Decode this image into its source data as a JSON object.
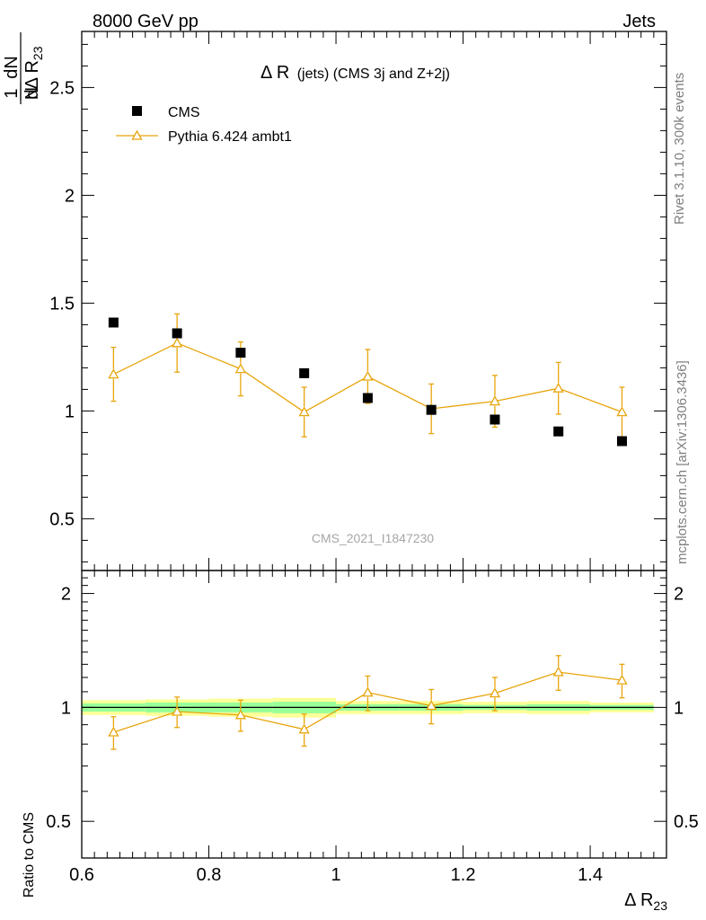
{
  "header": {
    "left": "8000 GeV pp",
    "right": "Jets"
  },
  "side_labels": {
    "rivet": "Rivet 3.1.10,  300k events",
    "mcplots": "mcplots.cern.ch [arXiv:1306.3436]"
  },
  "watermark": "CMS_2021_I1847230",
  "chart_data": [
    {
      "type": "scatter",
      "panel": "main",
      "title": "Δ R (jets) (CMS 3j and Z+2j)",
      "title_main": "Δ R",
      "title_sub": "(jets) (CMS 3j and Z+2j)",
      "ylabel": "1/N dN/dΔ R23",
      "ylabel_num": "1",
      "ylabel_den": "N",
      "ylabel_dnum": "dN",
      "ylabel_dden": "dΔ R",
      "ylabel_sub": "23",
      "xlim": [
        0.6,
        1.52
      ],
      "ylim": [
        0.26,
        2.76
      ],
      "yticks": [
        0.5,
        1,
        1.5,
        2,
        2.5
      ],
      "ytick_labels": [
        "0.5",
        "1",
        "1.5",
        "2",
        "2.5"
      ],
      "legend_position": "top-left",
      "series": [
        {
          "name": "CMS",
          "color": "#000000",
          "marker": "square",
          "x": [
            0.65,
            0.75,
            0.85,
            0.95,
            1.05,
            1.15,
            1.25,
            1.35,
            1.45
          ],
          "y": [
            1.41,
            1.36,
            1.27,
            1.175,
            1.06,
            1.005,
            0.96,
            0.905,
            0.86
          ]
        },
        {
          "name": "Pythia 6.424 ambt1",
          "color": "#e8a50c",
          "marker": "open-triangle",
          "x": [
            0.65,
            0.75,
            0.85,
            0.95,
            1.05,
            1.15,
            1.25,
            1.35,
            1.45
          ],
          "y": [
            1.17,
            1.315,
            1.195,
            0.995,
            1.16,
            1.01,
            1.045,
            1.105,
            0.995
          ],
          "yerr": [
            0.125,
            0.135,
            0.125,
            0.115,
            0.125,
            0.115,
            0.12,
            0.12,
            0.115
          ]
        }
      ]
    },
    {
      "type": "scatter",
      "panel": "ratio",
      "ylabel": "Ratio to CMS",
      "xlabel": "Δ R23",
      "xlabel_main": "Δ R",
      "xlabel_sub": "23",
      "xlim": [
        0.6,
        1.52
      ],
      "ylim": [
        0.4,
        2.3
      ],
      "xticks": [
        0.6,
        0.8,
        1,
        1.2,
        1.4
      ],
      "xtick_labels": [
        "0.6",
        "0.8",
        "1",
        "1.2",
        "1.4"
      ],
      "yticks": [
        0.5,
        1,
        2
      ],
      "ytick_labels": [
        "0.5",
        "1",
        "2"
      ],
      "reference_line": 1,
      "bands": [
        {
          "x0": 0.6,
          "x1": 0.7,
          "yellow": 0.045,
          "green": 0.025
        },
        {
          "x0": 0.7,
          "x1": 0.8,
          "yellow": 0.05,
          "green": 0.03
        },
        {
          "x0": 0.8,
          "x1": 0.9,
          "yellow": 0.055,
          "green": 0.03
        },
        {
          "x0": 0.9,
          "x1": 1.0,
          "yellow": 0.06,
          "green": 0.035
        },
        {
          "x0": 1.0,
          "x1": 1.1,
          "yellow": 0.04,
          "green": 0.02
        },
        {
          "x0": 1.1,
          "x1": 1.2,
          "yellow": 0.04,
          "green": 0.02
        },
        {
          "x0": 1.2,
          "x1": 1.3,
          "yellow": 0.035,
          "green": 0.015
        },
        {
          "x0": 1.3,
          "x1": 1.4,
          "yellow": 0.04,
          "green": 0.02
        },
        {
          "x0": 1.4,
          "x1": 1.5,
          "yellow": 0.03,
          "green": 0.015
        }
      ],
      "series": [
        {
          "name": "Pythia 6.424 ambt1 / CMS",
          "color": "#e8a50c",
          "marker": "open-triangle",
          "x": [
            0.65,
            0.75,
            0.85,
            0.95,
            1.05,
            1.15,
            1.25,
            1.35,
            1.45
          ],
          "y": [
            0.86,
            0.975,
            0.955,
            0.875,
            1.095,
            1.01,
            1.09,
            1.24,
            1.18
          ],
          "yerr": [
            0.085,
            0.09,
            0.09,
            0.085,
            0.115,
            0.105,
            0.11,
            0.13,
            0.12
          ]
        }
      ]
    }
  ]
}
